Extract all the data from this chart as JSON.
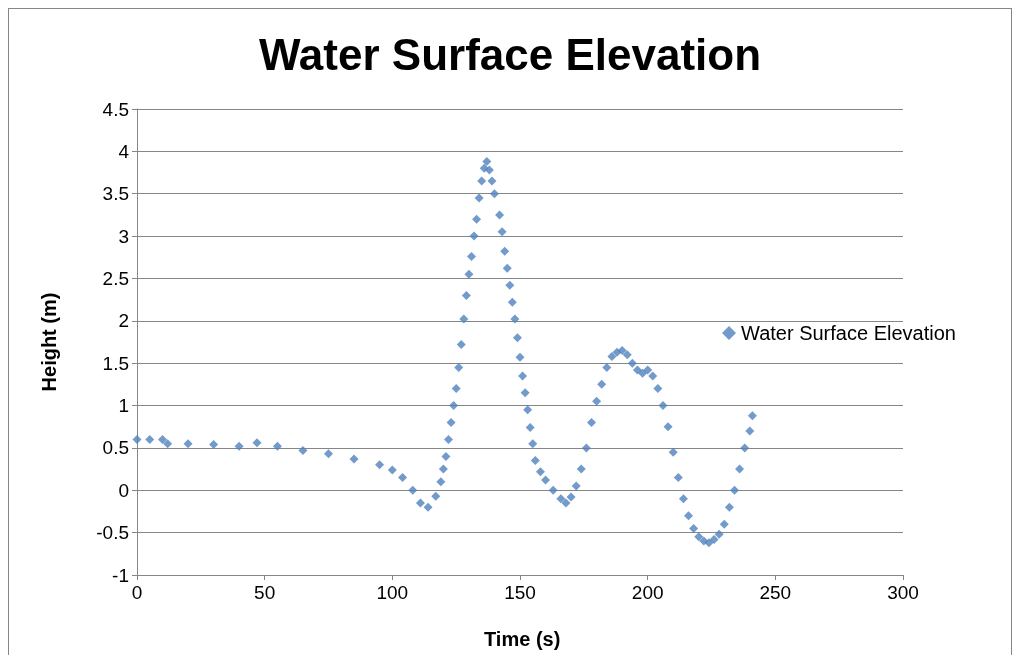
{
  "chart_data": {
    "type": "scatter",
    "title": "Water Surface Elevation",
    "xlabel": "Time (s)",
    "ylabel": "Height (m)",
    "series": [
      {
        "name": "Water Surface Elevation",
        "color": "#4f81bd",
        "x": [
          0,
          5,
          10,
          12,
          20,
          30,
          40,
          47,
          55,
          65,
          75,
          85,
          95,
          100,
          104,
          108,
          111,
          114,
          117,
          119,
          120,
          121,
          122,
          123,
          124,
          125,
          126,
          127,
          128,
          129,
          130,
          131,
          132,
          133,
          134,
          135,
          136,
          137,
          138,
          139,
          140,
          142,
          143,
          144,
          145,
          146,
          147,
          148,
          149,
          150,
          151,
          152,
          153,
          154,
          155,
          156,
          158,
          160,
          163,
          166,
          168,
          170,
          172,
          174,
          176,
          178,
          180,
          182,
          184,
          186,
          188,
          190,
          192,
          194,
          196,
          198,
          200,
          202,
          204,
          206,
          208,
          210,
          212,
          214,
          216,
          218,
          220,
          222,
          224,
          226,
          228,
          230,
          232,
          234,
          236,
          238,
          240,
          241
        ],
        "values": [
          0.6,
          0.6,
          0.6,
          0.55,
          0.55,
          0.54,
          0.52,
          0.56,
          0.52,
          0.47,
          0.43,
          0.37,
          0.3,
          0.24,
          0.15,
          0.0,
          -0.15,
          -0.2,
          -0.07,
          0.1,
          0.25,
          0.4,
          0.6,
          0.8,
          1.0,
          1.2,
          1.45,
          1.72,
          2.02,
          2.3,
          2.55,
          2.76,
          3.0,
          3.2,
          3.45,
          3.65,
          3.8,
          3.88,
          3.78,
          3.65,
          3.5,
          3.25,
          3.05,
          2.82,
          2.62,
          2.42,
          2.22,
          2.02,
          1.8,
          1.57,
          1.35,
          1.15,
          0.95,
          0.74,
          0.55,
          0.35,
          0.22,
          0.12,
          0.0,
          -0.1,
          -0.15,
          -0.08,
          0.05,
          0.25,
          0.5,
          0.8,
          1.05,
          1.25,
          1.45,
          1.58,
          1.63,
          1.65,
          1.6,
          1.5,
          1.42,
          1.38,
          1.42,
          1.35,
          1.2,
          1.0,
          0.75,
          0.45,
          0.15,
          -0.1,
          -0.3,
          -0.45,
          -0.55,
          -0.6,
          -0.62,
          -0.58,
          -0.52,
          -0.4,
          -0.2,
          0.0,
          0.25,
          0.5,
          0.7,
          0.88
        ]
      }
    ],
    "xlim": [
      0,
      300
    ],
    "xticks": [
      0,
      50,
      100,
      150,
      200,
      250,
      300
    ],
    "ylim": [
      -1,
      4.5
    ],
    "yticks": [
      -1,
      -0.5,
      0,
      0.5,
      1,
      1.5,
      2,
      2.5,
      3,
      3.5,
      4,
      4.5
    ],
    "grid": "y",
    "legend": "right",
    "marker": "diamond"
  }
}
